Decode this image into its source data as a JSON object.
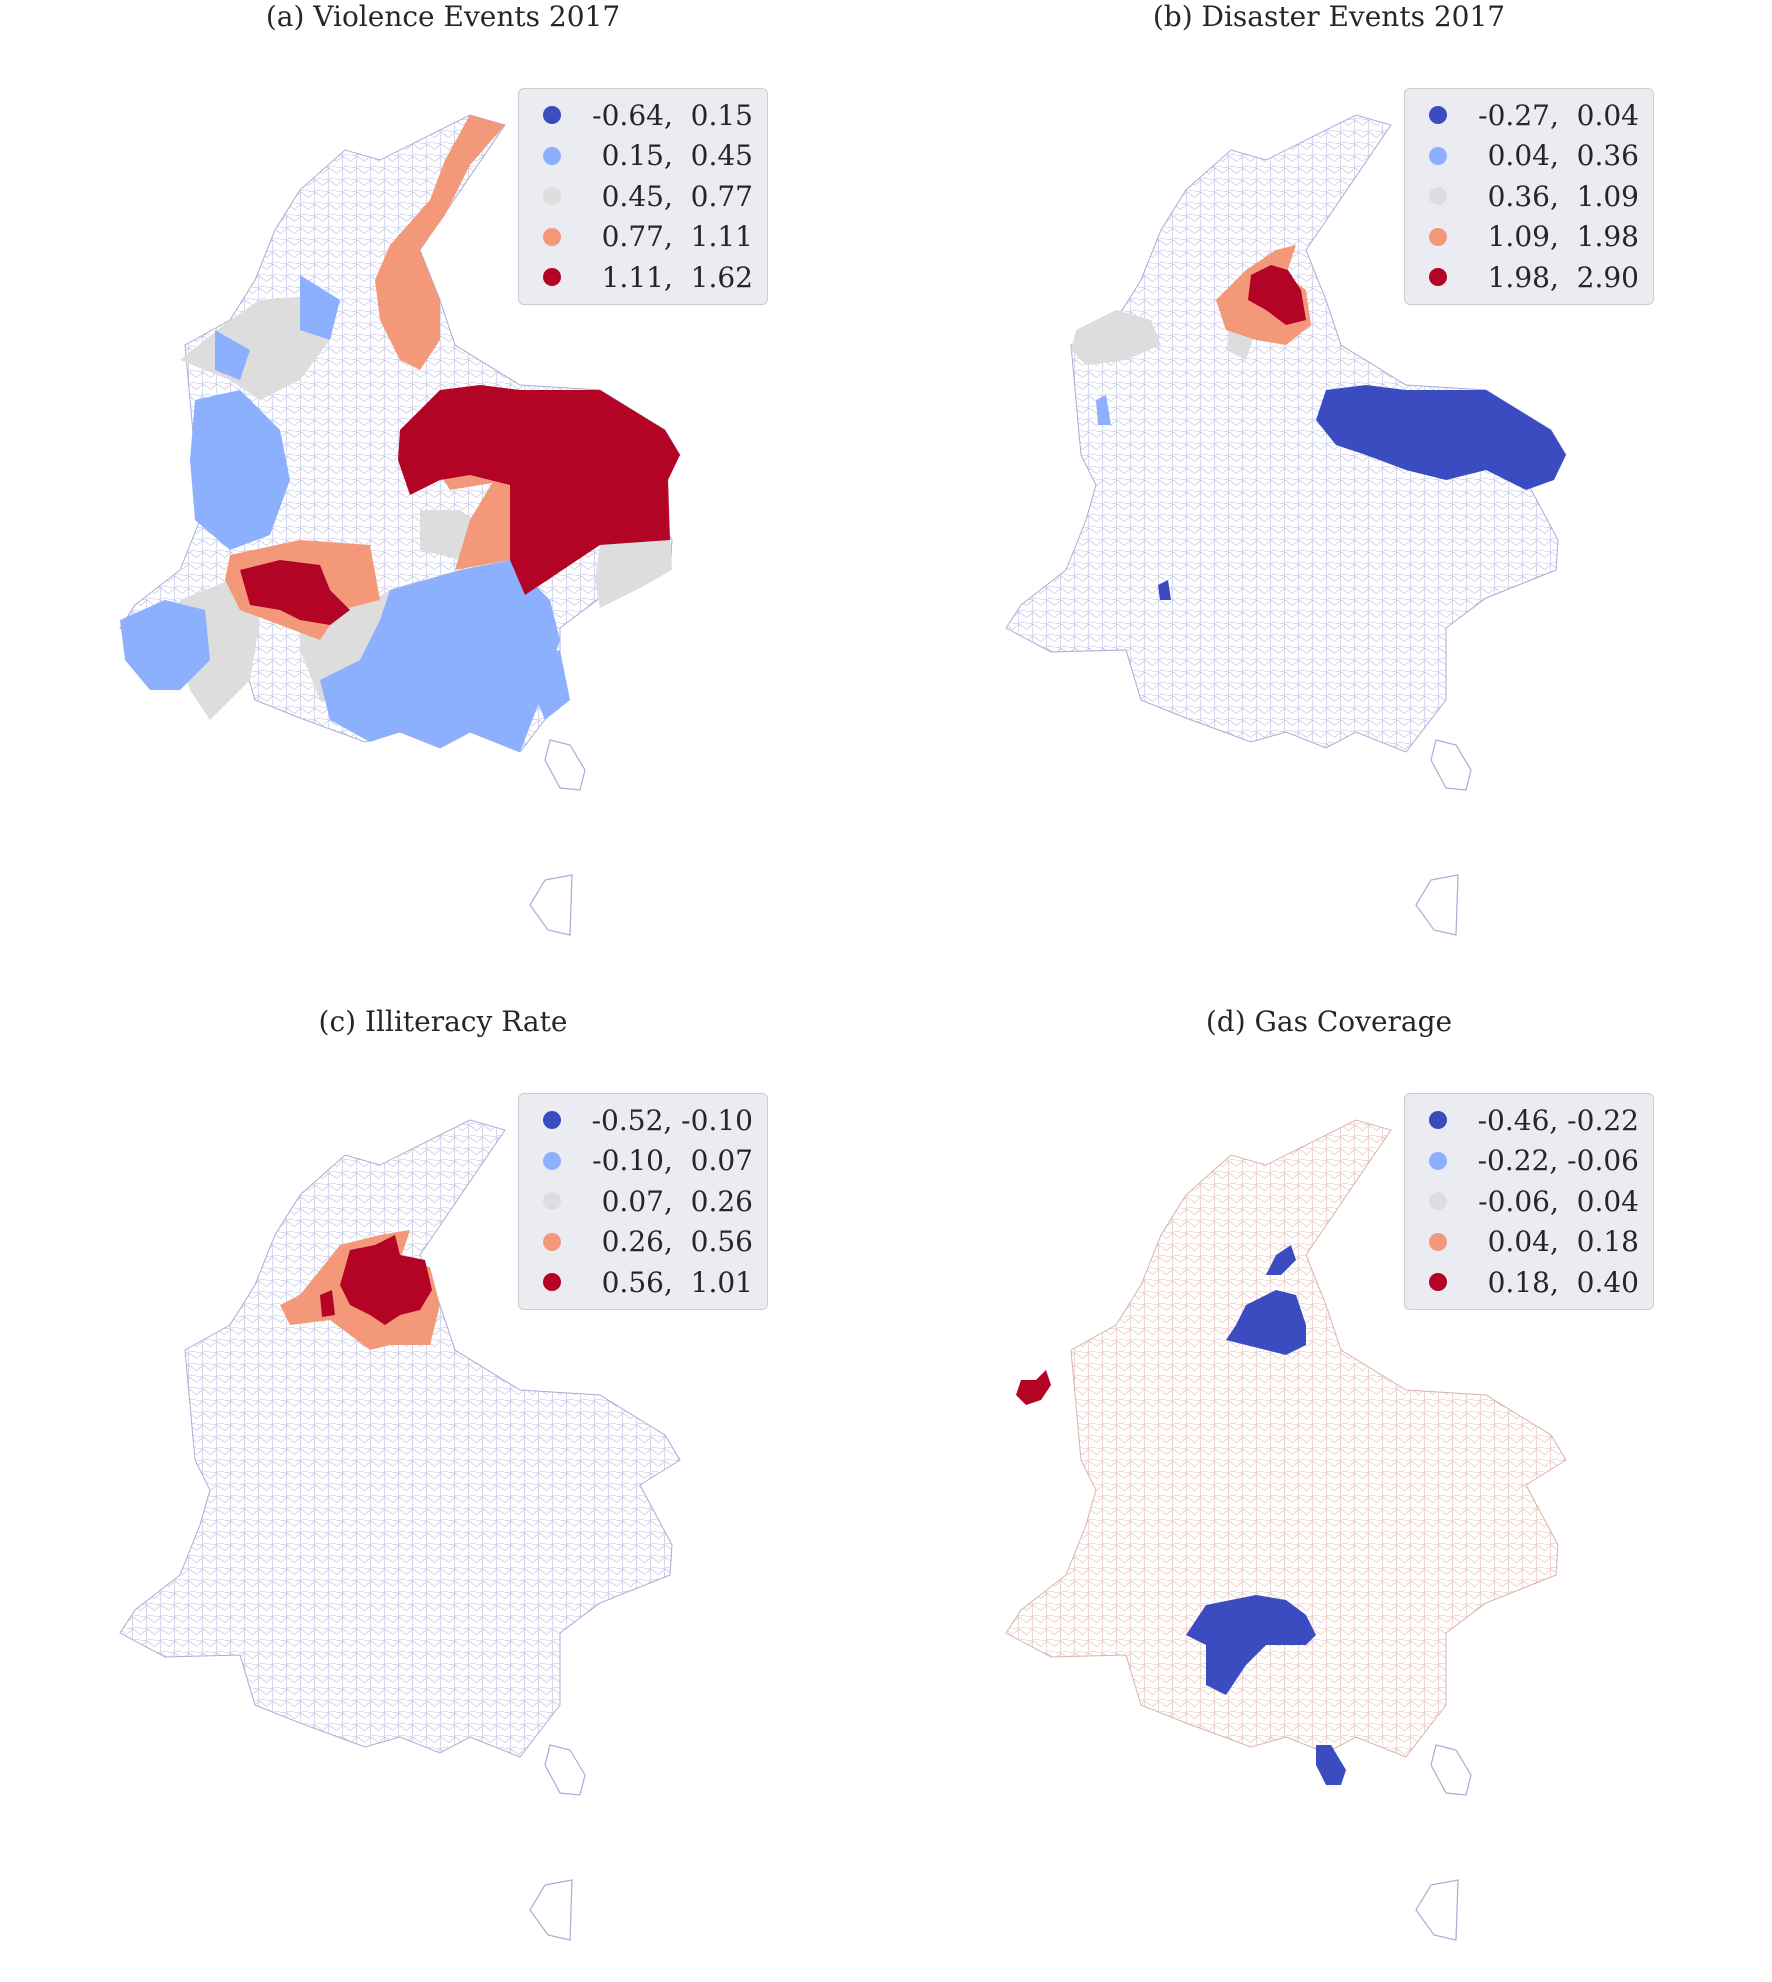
{
  "colors": {
    "class1": "#3b4cc0",
    "class2": "#8db0fe",
    "class3": "#dddddd",
    "class4": "#f4987a",
    "class5": "#b40426",
    "outline": "#a9acd6",
    "outline_warm": "#e0b0a6"
  },
  "panels": [
    {
      "title": "(a) Violence Events 2017",
      "legend": [
        {
          "label": "-0.64,  0.15",
          "class": "class1"
        },
        {
          "label": "0.15,  0.45",
          "class": "class2"
        },
        {
          "label": "0.45,  0.77",
          "class": "class3"
        },
        {
          "label": "0.77,  1.11",
          "class": "class4"
        },
        {
          "label": "1.11,  1.62",
          "class": "class5"
        }
      ]
    },
    {
      "title": "(b) Disaster Events 2017",
      "legend": [
        {
          "label": "-0.27,  0.04",
          "class": "class1"
        },
        {
          "label": "0.04,  0.36",
          "class": "class2"
        },
        {
          "label": "0.36,  1.09",
          "class": "class3"
        },
        {
          "label": "1.09,  1.98",
          "class": "class4"
        },
        {
          "label": "1.98,  2.90",
          "class": "class5"
        }
      ]
    },
    {
      "title": "(c) Illiteracy Rate",
      "legend": [
        {
          "label": "-0.52, -0.10",
          "class": "class1"
        },
        {
          "label": "-0.10,  0.07",
          "class": "class2"
        },
        {
          "label": "0.07,  0.26",
          "class": "class3"
        },
        {
          "label": "0.26,  0.56",
          "class": "class4"
        },
        {
          "label": "0.56,  1.01",
          "class": "class5"
        }
      ]
    },
    {
      "title": "(d) Gas Coverage",
      "legend": [
        {
          "label": "-0.46, -0.22",
          "class": "class1"
        },
        {
          "label": "-0.22, -0.06",
          "class": "class2"
        },
        {
          "label": "-0.06,  0.04",
          "class": "class3"
        },
        {
          "label": "0.04,  0.18",
          "class": "class4"
        },
        {
          "label": "0.18,  0.40",
          "class": "class5"
        }
      ]
    }
  ]
}
